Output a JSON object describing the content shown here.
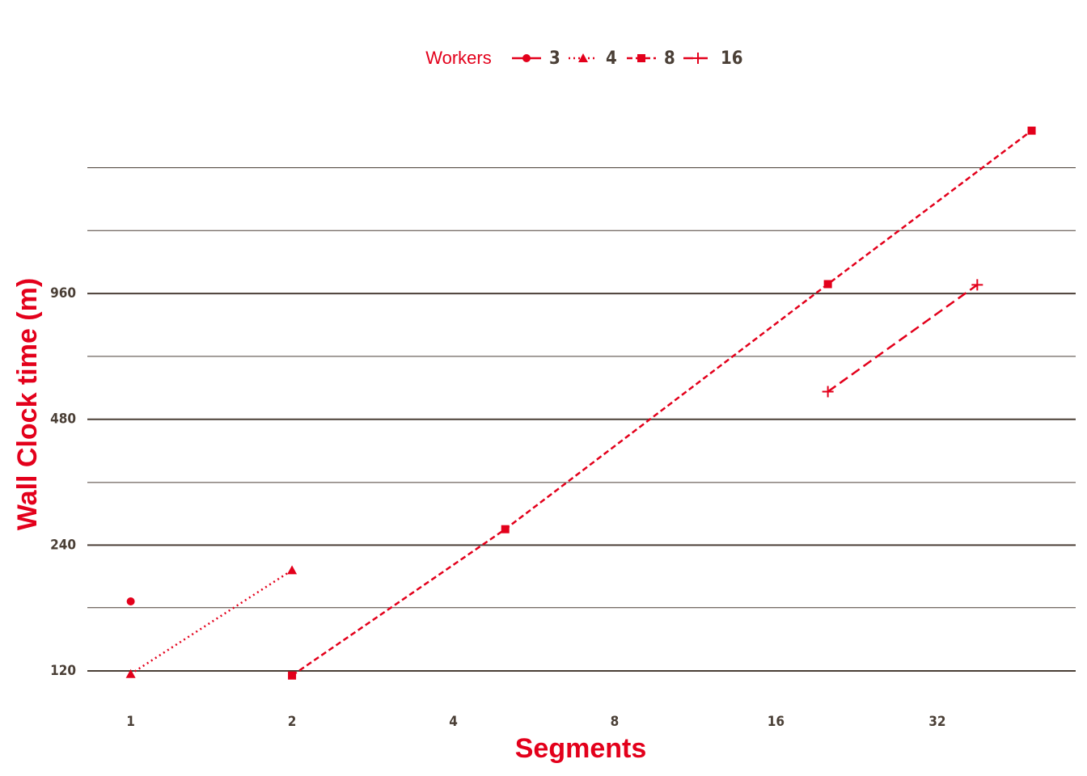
{
  "chart_data": {
    "type": "line",
    "x_label": "Segments",
    "y_label": "Wall Clock time (m)",
    "legend_title": "Workers",
    "legend_position": "top",
    "x_log_base": 2,
    "y_log_base": 2,
    "xlim": [
      0.83,
      58
    ],
    "xticks": [
      1,
      2,
      4,
      8,
      16,
      32
    ],
    "ylim": [
      105,
      2480
    ],
    "yticks": [
      120,
      240,
      480,
      960
    ],
    "y_minor_grid": [
      170,
      339,
      679,
      1358,
      1920
    ],
    "series": [
      {
        "name": "3",
        "color": "#e3001b",
        "marker": "circle",
        "dash": "none",
        "x": [
          1
        ],
        "values": [
          176
        ]
      },
      {
        "name": "4",
        "color": "#e3001b",
        "marker": "triangle",
        "dash": "2,4",
        "x": [
          1,
          2
        ],
        "values": [
          118,
          209
        ]
      },
      {
        "name": "8",
        "color": "#e3001b",
        "marker": "square",
        "dash": "7,4",
        "x": [
          2,
          5,
          20,
          48
        ],
        "values": [
          117,
          262,
          1011,
          2355
        ]
      },
      {
        "name": "16",
        "color": "#e3001b",
        "marker": "plus",
        "dash": "12,6",
        "x": [
          20,
          38
        ],
        "values": [
          559,
          1007
        ]
      }
    ]
  }
}
